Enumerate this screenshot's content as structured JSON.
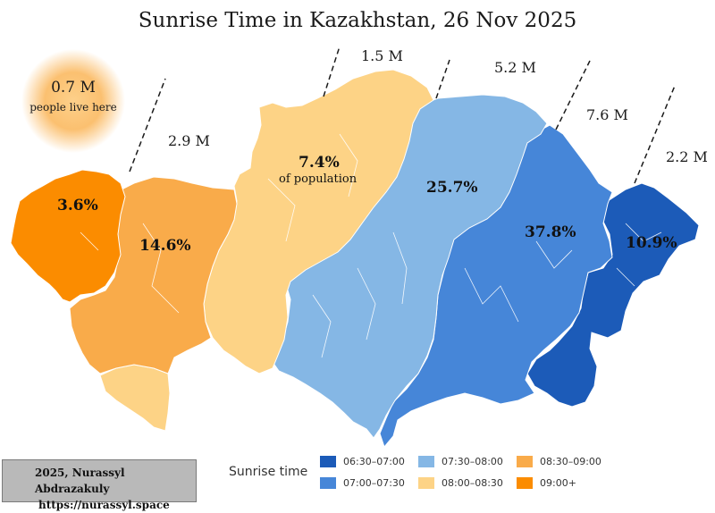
{
  "title": "Sunrise Time in Kazakhstan, 26 Nov 2025",
  "bubble": {
    "value": "0.7 M",
    "text": "people live here"
  },
  "zones": [
    {
      "id": "z0900",
      "color": "#fb8c00",
      "percent": "3.6%",
      "population": "0.7 M"
    },
    {
      "id": "z0830",
      "color": "#f9ab4a",
      "percent": "14.6%",
      "population": "2.9 M"
    },
    {
      "id": "z0800",
      "color": "#fdd386",
      "percent": "7.4%",
      "percent_note": "of population",
      "population": "1.5 M"
    },
    {
      "id": "z0730",
      "color": "#85b7e5",
      "percent": "25.7%",
      "population": "5.2 M"
    },
    {
      "id": "z0700",
      "color": "#4686d8",
      "percent": "37.8%",
      "population": "7.6 M"
    },
    {
      "id": "z0630",
      "color": "#1c5bb8",
      "percent": "10.9%",
      "population": "2.2 M"
    }
  ],
  "legend": {
    "title": "Sunrise time",
    "items": [
      {
        "label": "06:30–07:00",
        "color": "#1c5bb8"
      },
      {
        "label": "07:00–07:30",
        "color": "#4686d8"
      },
      {
        "label": "07:30–08:00",
        "color": "#85b7e5"
      },
      {
        "label": "08:00–08:30",
        "color": "#fdd386"
      },
      {
        "label": "08:30–09:00",
        "color": "#f9ab4a"
      },
      {
        "label": "09:00+",
        "color": "#fb8c00"
      }
    ]
  },
  "credit": {
    "line1": "2025, Nurassyl Abdrazakuly",
    "line2": "https://nurassyl.space"
  }
}
